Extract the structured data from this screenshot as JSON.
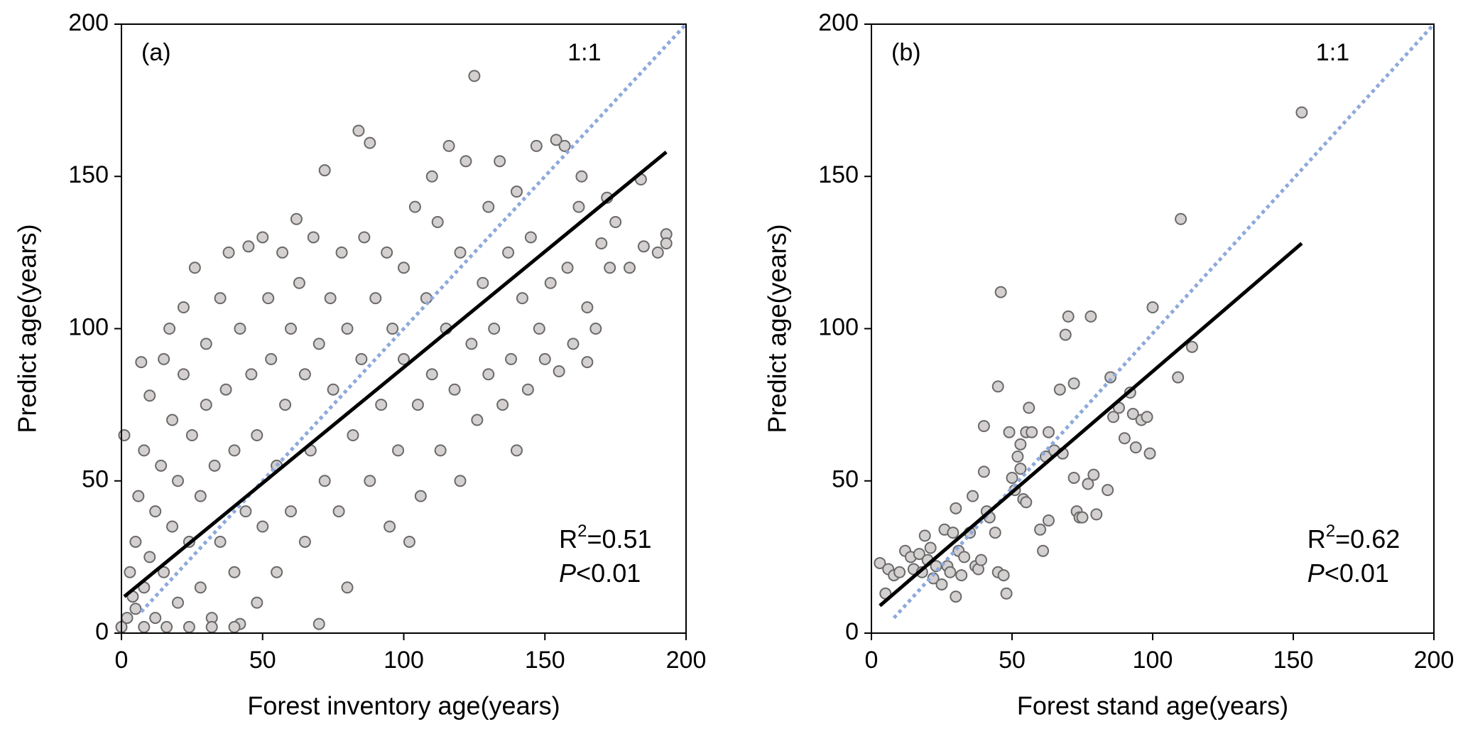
{
  "chart_data": [
    {
      "type": "scatter",
      "panel_label": "(a)",
      "xlabel": "Forest inventory age(years)",
      "ylabel": "Predict age(years)",
      "xlim": [
        0,
        200
      ],
      "ylim": [
        0,
        200
      ],
      "xticks": [
        0,
        50,
        100,
        150,
        200
      ],
      "yticks": [
        0,
        50,
        100,
        150,
        200
      ],
      "identity_label": "1:1",
      "r2": {
        "symbol": "R",
        "sup": "2",
        "text": "=0.51"
      },
      "p": {
        "symbol": "P",
        "text": "<0.01"
      },
      "series": [
        {
          "color": "#d4d0d0",
          "x": [
            1,
            2,
            3,
            4,
            5,
            5,
            6,
            7,
            8,
            8,
            10,
            10,
            12,
            12,
            14,
            15,
            15,
            17,
            18,
            18,
            20,
            20,
            22,
            22,
            24,
            25,
            26,
            28,
            28,
            30,
            30,
            32,
            33,
            35,
            35,
            37,
            38,
            40,
            40,
            42,
            42,
            44,
            45,
            46,
            48,
            48,
            50,
            50,
            52,
            53,
            55,
            55,
            57,
            58,
            60,
            60,
            62,
            63,
            65,
            65,
            67,
            68,
            70,
            70,
            72,
            72,
            74,
            75,
            77,
            78,
            80,
            80,
            82,
            84,
            85,
            86,
            88,
            88,
            90,
            92,
            94,
            95,
            96,
            98,
            100,
            100,
            102,
            104,
            105,
            106,
            108,
            110,
            110,
            112,
            113,
            115,
            116,
            118,
            120,
            120,
            122,
            124,
            125,
            126,
            128,
            130,
            130,
            132,
            134,
            135,
            137,
            138,
            140,
            140,
            142,
            144,
            145,
            147,
            148,
            150,
            152,
            154,
            155,
            157,
            158,
            160,
            162,
            163,
            165,
            165,
            168,
            170,
            172,
            173,
            175,
            180,
            184,
            185,
            190,
            193,
            193,
            0,
            8,
            16,
            24,
            32,
            40
          ],
          "values": [
            65,
            5,
            20,
            12,
            30,
            8,
            45,
            89,
            60,
            15,
            25,
            78,
            40,
            5,
            55,
            90,
            20,
            100,
            35,
            70,
            10,
            50,
            85,
            107,
            30,
            65,
            120,
            45,
            15,
            95,
            75,
            5,
            55,
            110,
            30,
            80,
            125,
            60,
            20,
            100,
            3,
            40,
            127,
            85,
            65,
            10,
            130,
            35,
            110,
            90,
            55,
            20,
            125,
            75,
            100,
            40,
            136,
            115,
            85,
            30,
            60,
            130,
            95,
            3,
            152,
            50,
            110,
            80,
            40,
            125,
            100,
            15,
            65,
            165,
            90,
            130,
            161,
            50,
            110,
            75,
            125,
            35,
            100,
            60,
            120,
            90,
            30,
            140,
            75,
            45,
            110,
            150,
            85,
            135,
            60,
            100,
            160,
            80,
            125,
            50,
            155,
            95,
            183,
            70,
            115,
            140,
            85,
            100,
            155,
            75,
            125,
            90,
            145,
            60,
            110,
            80,
            130,
            160,
            100,
            90,
            115,
            162,
            86,
            160,
            120,
            95,
            140,
            150,
            89,
            107,
            100,
            128,
            143,
            120,
            135,
            120,
            149,
            127,
            125,
            131,
            128,
            2,
            2,
            2,
            2,
            2,
            2
          ]
        }
      ],
      "lines": [
        {
          "x": [
            7,
            200
          ],
          "values": [
            7,
            200
          ],
          "color": "#8ea9db",
          "dashed": true
        },
        {
          "x": [
            1,
            193
          ],
          "values": [
            12,
            158
          ],
          "color": "#000000",
          "dashed": false
        }
      ]
    },
    {
      "type": "scatter",
      "panel_label": "(b)",
      "xlabel": "Forest stand age(years)",
      "ylabel": "Predict age(years)",
      "xlim": [
        0,
        200
      ],
      "ylim": [
        0,
        200
      ],
      "xticks": [
        0,
        50,
        100,
        150,
        200
      ],
      "yticks": [
        0,
        50,
        100,
        150,
        200
      ],
      "identity_label": "1:1",
      "r2": {
        "symbol": "R",
        "sup": "2",
        "text": "=0.62"
      },
      "p": {
        "symbol": "P",
        "text": "<0.01"
      },
      "series": [
        {
          "color": "#d4d0d0",
          "x": [
            3,
            5,
            6,
            8,
            10,
            12,
            14,
            15,
            17,
            18,
            19,
            20,
            21,
            22,
            23,
            25,
            26,
            27,
            28,
            29,
            30,
            30,
            31,
            32,
            33,
            35,
            36,
            37,
            38,
            39,
            40,
            40,
            41,
            42,
            44,
            45,
            45,
            46,
            47,
            48,
            49,
            50,
            51,
            52,
            53,
            53,
            54,
            55,
            55,
            56,
            57,
            60,
            61,
            62,
            63,
            63,
            65,
            67,
            68,
            69,
            70,
            72,
            72,
            73,
            74,
            75,
            77,
            78,
            79,
            80,
            84,
            85,
            86,
            88,
            90,
            92,
            93,
            94,
            96,
            98,
            99,
            100,
            109,
            110,
            114,
            153
          ],
          "values": [
            23,
            13,
            21,
            19,
            20,
            27,
            25,
            21,
            26,
            20,
            32,
            24,
            28,
            18,
            22,
            16,
            34,
            22,
            20,
            33,
            12,
            41,
            27,
            19,
            25,
            33,
            45,
            22,
            21,
            24,
            68,
            53,
            40,
            38,
            33,
            81,
            20,
            112,
            19,
            13,
            66,
            51,
            47,
            58,
            62,
            54,
            44,
            43,
            66,
            74,
            66,
            34,
            27,
            58,
            66,
            37,
            60,
            80,
            59,
            98,
            104,
            51,
            82,
            40,
            38,
            38,
            49,
            104,
            52,
            39,
            47,
            84,
            71,
            74,
            64,
            79,
            72,
            61,
            70,
            71,
            59,
            107,
            84,
            136,
            94,
            171
          ]
        }
      ],
      "lines": [
        {
          "x": [
            8,
            200
          ],
          "values": [
            5,
            200
          ],
          "color": "#8ea9db",
          "dashed": true
        },
        {
          "x": [
            3,
            153
          ],
          "values": [
            9,
            128
          ],
          "color": "#000000",
          "dashed": false
        }
      ]
    }
  ]
}
